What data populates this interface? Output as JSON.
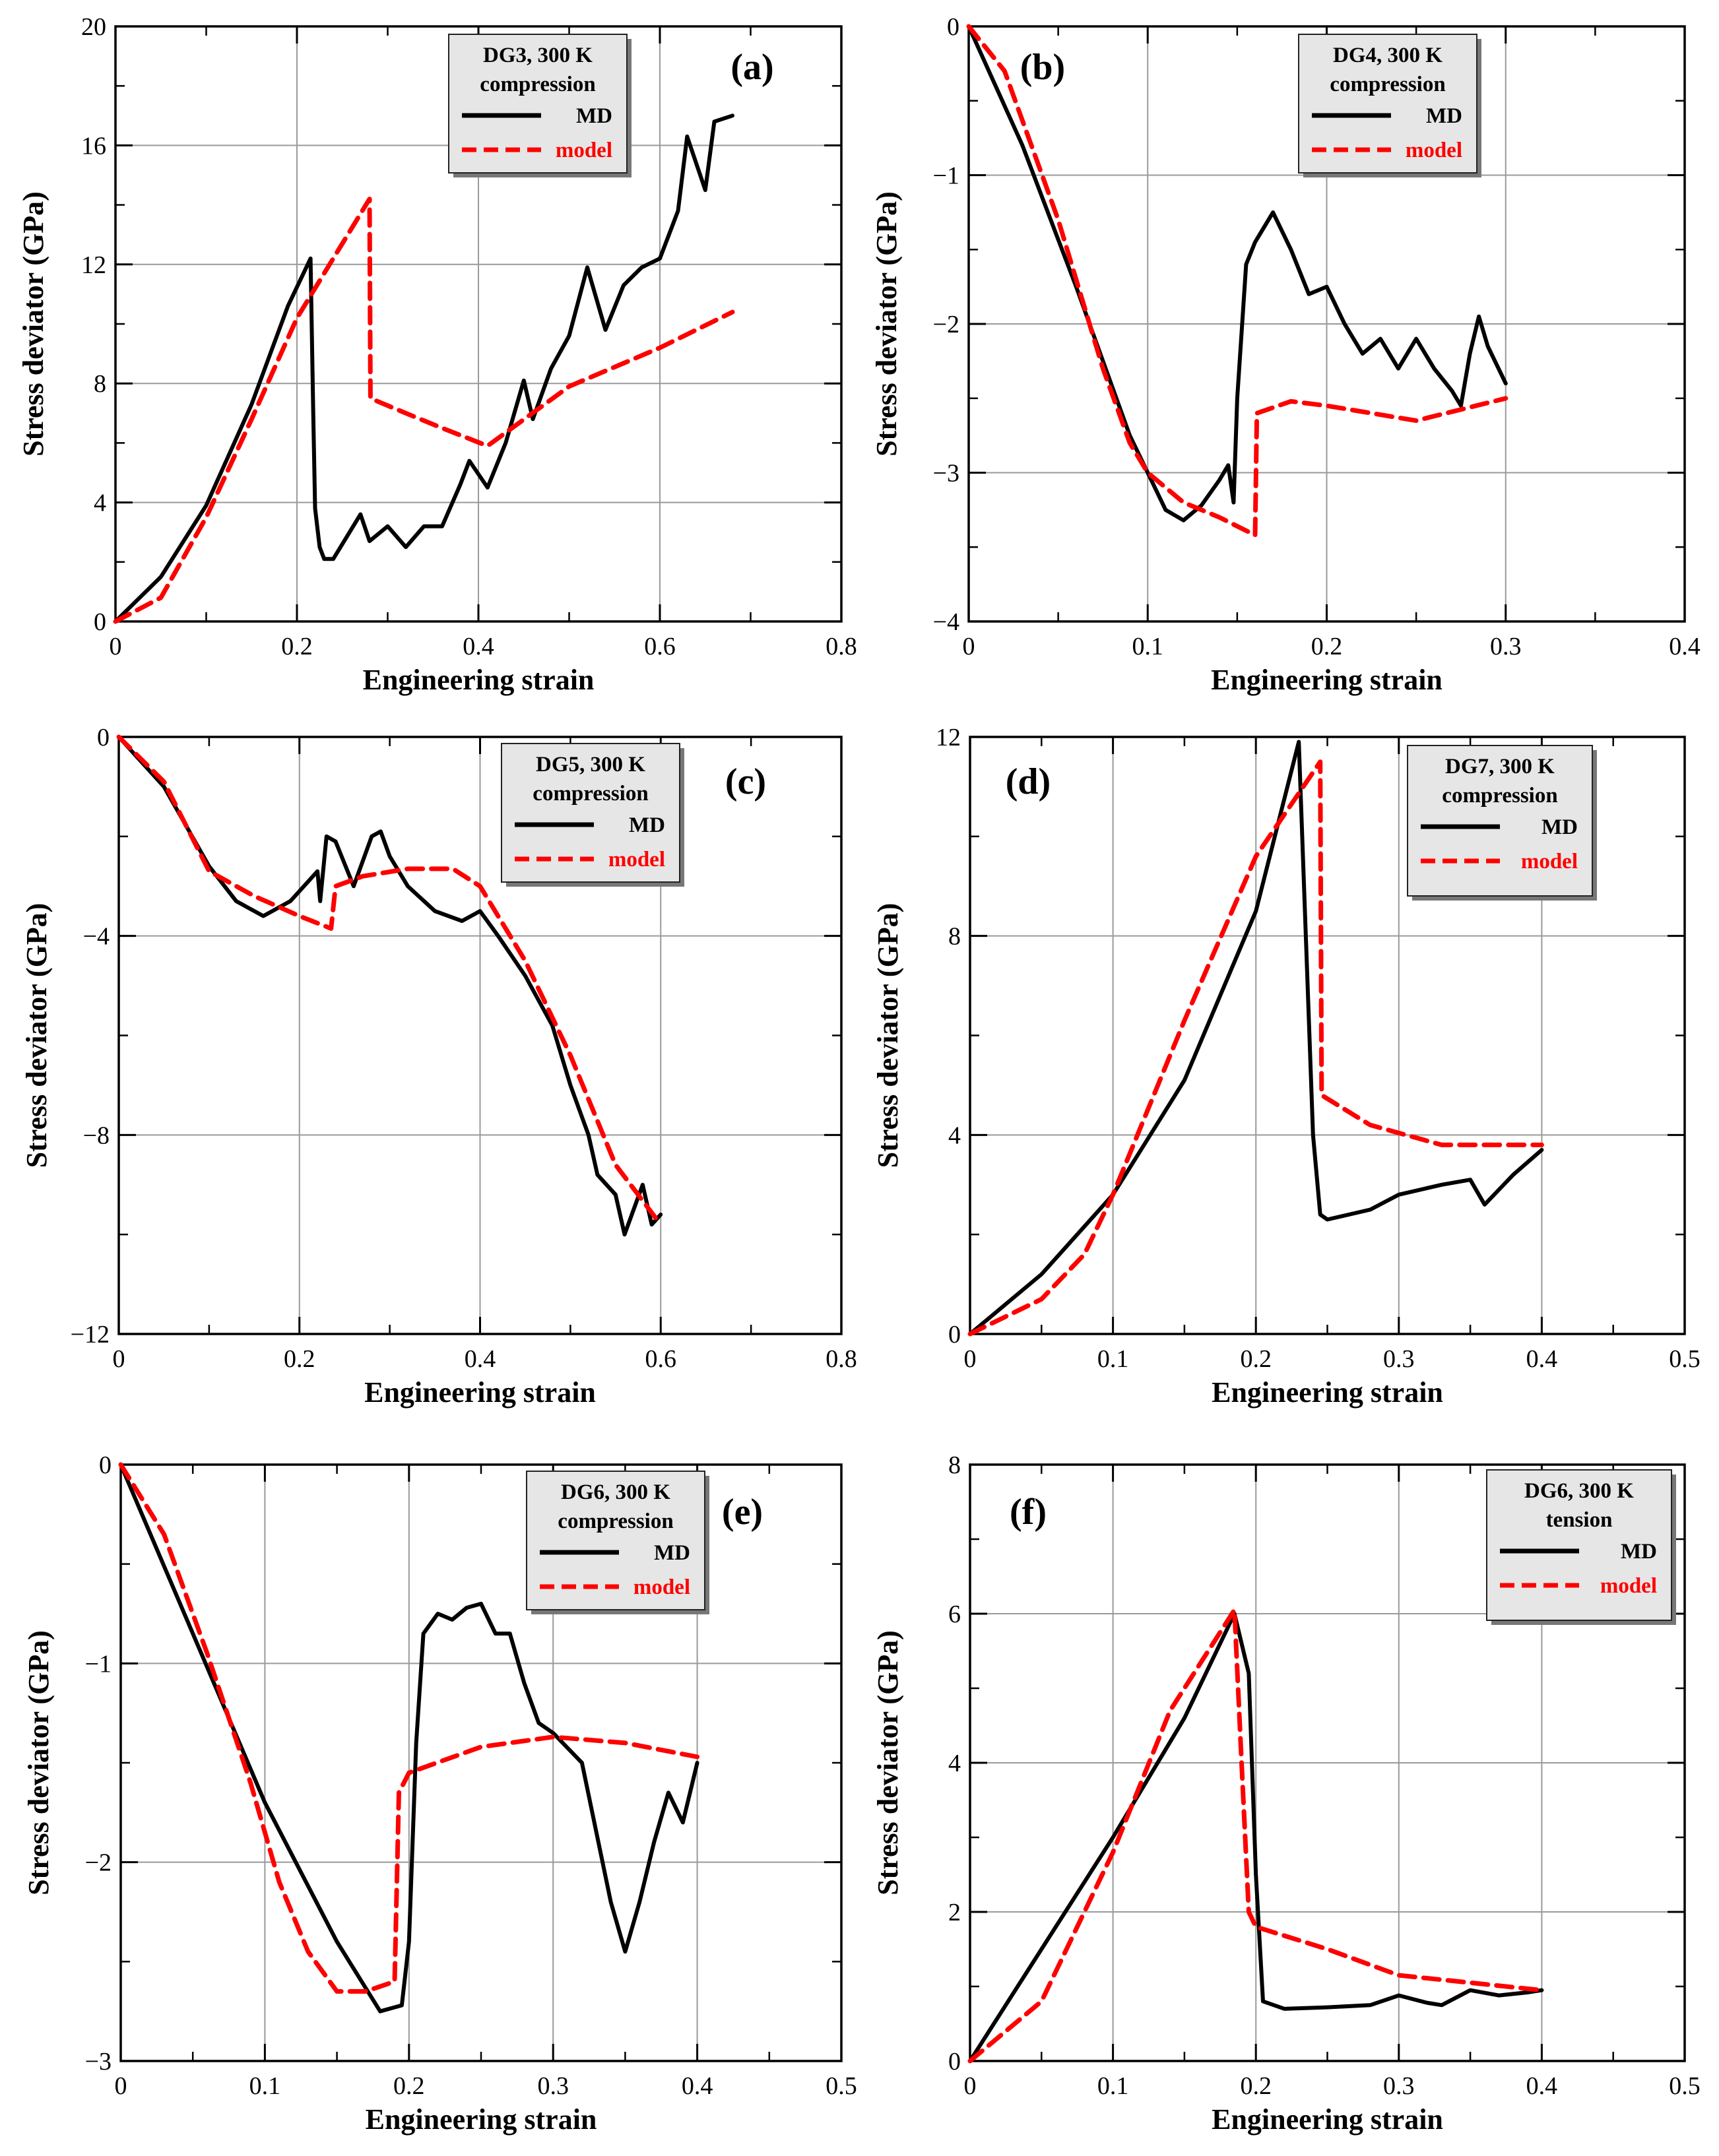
{
  "chart_data": [
    {
      "type": "line",
      "panel_label": "(a)",
      "legend_title": [
        "DG3, 300 K",
        "compression"
      ],
      "xlabel": "Engineering strain",
      "ylabel": "Stress deviator (GPa)",
      "xlim": [
        0,
        0.8
      ],
      "ylim": [
        0,
        20
      ],
      "xticks": [
        0,
        0.2,
        0.4,
        0.6,
        0.8
      ],
      "xtick_labels": [
        "0",
        "0.2",
        "0.4",
        "0.6",
        "0.8"
      ],
      "yticks": [
        0,
        4,
        8,
        12,
        16,
        20
      ],
      "ytick_labels": [
        "0",
        "4",
        "8",
        "12",
        "16",
        "20"
      ],
      "series": [
        {
          "name": "MD",
          "color": "#000000",
          "dash": false,
          "x": [
            0,
            0.05,
            0.1,
            0.15,
            0.19,
            0.215,
            0.218,
            0.22,
            0.225,
            0.23,
            0.24,
            0.27,
            0.28,
            0.3,
            0.32,
            0.34,
            0.36,
            0.38,
            0.39,
            0.41,
            0.43,
            0.45,
            0.46,
            0.48,
            0.5,
            0.52,
            0.54,
            0.56,
            0.58,
            0.6,
            0.62,
            0.63,
            0.65,
            0.66,
            0.68
          ],
          "y": [
            0,
            1.5,
            3.9,
            7.3,
            10.6,
            12.2,
            7.0,
            3.8,
            2.5,
            2.1,
            2.1,
            3.6,
            2.7,
            3.2,
            2.5,
            3.2,
            3.2,
            4.6,
            5.4,
            4.5,
            6.0,
            8.1,
            6.8,
            8.5,
            9.6,
            11.9,
            9.8,
            11.3,
            11.9,
            12.2,
            13.8,
            16.3,
            14.5,
            16.8,
            17.0
          ]
        },
        {
          "name": "model",
          "color": "#ff0000",
          "dash": true,
          "x": [
            0,
            0.05,
            0.1,
            0.15,
            0.2,
            0.28,
            0.281,
            0.32,
            0.36,
            0.41,
            0.5,
            0.6,
            0.68
          ],
          "y": [
            0,
            0.8,
            3.5,
            6.8,
            10.2,
            14.2,
            7.5,
            7.0,
            6.5,
            5.9,
            7.9,
            9.2,
            10.4
          ]
        }
      ]
    },
    {
      "type": "line",
      "panel_label": "(b)",
      "legend_title": [
        "DG4, 300 K",
        "compression"
      ],
      "xlabel": "Engineering strain",
      "ylabel": "Stress deviator (GPa)",
      "xlim": [
        0,
        0.4
      ],
      "ylim": [
        -4,
        0
      ],
      "xticks": [
        0,
        0.1,
        0.2,
        0.3,
        0.4
      ],
      "xtick_labels": [
        "0",
        "0.1",
        "0.2",
        "0.3",
        "0.4"
      ],
      "yticks": [
        -4,
        -3,
        -2,
        -1,
        0
      ],
      "ytick_labels": [
        "−4",
        "−3",
        "−2",
        "−1",
        "0"
      ],
      "series": [
        {
          "name": "MD",
          "color": "#000000",
          "dash": false,
          "x": [
            0,
            0.03,
            0.06,
            0.09,
            0.11,
            0.12,
            0.13,
            0.14,
            0.145,
            0.148,
            0.15,
            0.155,
            0.16,
            0.17,
            0.18,
            0.19,
            0.2,
            0.21,
            0.22,
            0.23,
            0.24,
            0.25,
            0.26,
            0.27,
            0.275,
            0.28,
            0.285,
            0.29,
            0.3
          ],
          "y": [
            0,
            -0.8,
            -1.75,
            -2.75,
            -3.25,
            -3.32,
            -3.22,
            -3.05,
            -2.95,
            -3.2,
            -2.5,
            -1.6,
            -1.45,
            -1.25,
            -1.5,
            -1.8,
            -1.75,
            -2.0,
            -2.2,
            -2.1,
            -2.3,
            -2.1,
            -2.3,
            -2.45,
            -2.55,
            -2.2,
            -1.95,
            -2.15,
            -2.4
          ]
        },
        {
          "name": "model",
          "color": "#ff0000",
          "dash": true,
          "x": [
            0,
            0.02,
            0.05,
            0.075,
            0.09,
            0.1,
            0.12,
            0.14,
            0.16,
            0.161,
            0.18,
            0.2,
            0.25,
            0.3
          ],
          "y": [
            0,
            -0.3,
            -1.3,
            -2.3,
            -2.8,
            -3.0,
            -3.2,
            -3.3,
            -3.42,
            -2.6,
            -2.52,
            -2.55,
            -2.65,
            -2.5
          ]
        }
      ]
    },
    {
      "type": "line",
      "panel_label": "(c)",
      "legend_title": [
        "DG5, 300 K",
        "compression"
      ],
      "xlabel": "Engineering strain",
      "ylabel": "Stress deviator (GPa)",
      "xlim": [
        0,
        0.8
      ],
      "ylim": [
        -12,
        0
      ],
      "xticks": [
        0,
        0.2,
        0.4,
        0.6,
        0.8
      ],
      "xtick_labels": [
        "0",
        "0.2",
        "0.4",
        "0.6",
        "0.8"
      ],
      "yticks": [
        -12,
        -8,
        -4,
        0
      ],
      "ytick_labels": [
        "−12",
        "−8",
        "−4",
        "0"
      ],
      "series": [
        {
          "name": "MD",
          "color": "#000000",
          "dash": false,
          "x": [
            0,
            0.05,
            0.1,
            0.13,
            0.16,
            0.19,
            0.22,
            0.223,
            0.23,
            0.24,
            0.26,
            0.28,
            0.29,
            0.3,
            0.32,
            0.35,
            0.38,
            0.4,
            0.42,
            0.45,
            0.48,
            0.5,
            0.52,
            0.53,
            0.55,
            0.56,
            0.58,
            0.59,
            0.6
          ],
          "y": [
            0,
            -1.0,
            -2.6,
            -3.3,
            -3.6,
            -3.3,
            -2.7,
            -3.3,
            -2.0,
            -2.1,
            -3.0,
            -2.0,
            -1.9,
            -2.4,
            -3.0,
            -3.5,
            -3.7,
            -3.5,
            -4.0,
            -4.8,
            -5.8,
            -7.0,
            -8.0,
            -8.8,
            -9.2,
            -10.0,
            -9.0,
            -9.8,
            -9.6
          ]
        },
        {
          "name": "model",
          "color": "#ff0000",
          "dash": true,
          "x": [
            0,
            0.05,
            0.1,
            0.15,
            0.2,
            0.235,
            0.24,
            0.27,
            0.32,
            0.37,
            0.4,
            0.45,
            0.5,
            0.55,
            0.6
          ],
          "y": [
            0,
            -0.9,
            -2.7,
            -3.2,
            -3.6,
            -3.85,
            -3.0,
            -2.8,
            -2.65,
            -2.65,
            -3.0,
            -4.5,
            -6.4,
            -8.6,
            -9.8
          ]
        }
      ]
    },
    {
      "type": "line",
      "panel_label": "(d)",
      "legend_title": [
        "DG7, 300 K",
        "compression"
      ],
      "xlabel": "Engineering strain",
      "ylabel": "Stress deviator (GPa)",
      "xlim": [
        0,
        0.5
      ],
      "ylim": [
        0,
        12
      ],
      "xticks": [
        0,
        0.1,
        0.2,
        0.3,
        0.4,
        0.5
      ],
      "xtick_labels": [
        "0",
        "0.1",
        "0.2",
        "0.3",
        "0.4",
        "0.5"
      ],
      "yticks": [
        0,
        4,
        8,
        12
      ],
      "ytick_labels": [
        "0",
        "4",
        "8",
        "12"
      ],
      "series": [
        {
          "name": "MD",
          "color": "#000000",
          "dash": false,
          "x": [
            0,
            0.05,
            0.1,
            0.15,
            0.2,
            0.23,
            0.24,
            0.245,
            0.25,
            0.28,
            0.3,
            0.33,
            0.35,
            0.36,
            0.38,
            0.4
          ],
          "y": [
            0,
            1.2,
            2.8,
            5.1,
            8.5,
            11.9,
            4.0,
            2.4,
            2.3,
            2.5,
            2.8,
            3.0,
            3.1,
            2.6,
            3.2,
            3.7
          ]
        },
        {
          "name": "model",
          "color": "#ff0000",
          "dash": true,
          "x": [
            0,
            0.05,
            0.08,
            0.1,
            0.15,
            0.2,
            0.245,
            0.246,
            0.28,
            0.33,
            0.4
          ],
          "y": [
            0,
            0.7,
            1.6,
            2.8,
            6.3,
            9.6,
            11.5,
            4.8,
            4.2,
            3.8,
            3.8
          ]
        }
      ]
    },
    {
      "type": "line",
      "panel_label": "(e)",
      "legend_title": [
        "DG6, 300 K",
        "compression"
      ],
      "xlabel": "Engineering strain",
      "ylabel": "Stress deviator (GPa)",
      "xlim": [
        0,
        0.5
      ],
      "ylim": [
        -3,
        0
      ],
      "xticks": [
        0,
        0.1,
        0.2,
        0.3,
        0.4,
        0.5
      ],
      "xtick_labels": [
        "0",
        "0.1",
        "0.2",
        "0.3",
        "0.4",
        "0.5"
      ],
      "yticks": [
        -3,
        -2,
        -1,
        0
      ],
      "ytick_labels": [
        "−3",
        "−2",
        "−1",
        "0"
      ],
      "series": [
        {
          "name": "MD",
          "color": "#000000",
          "dash": false,
          "x": [
            0,
            0.05,
            0.1,
            0.15,
            0.18,
            0.195,
            0.2,
            0.205,
            0.21,
            0.22,
            0.23,
            0.24,
            0.25,
            0.26,
            0.27,
            0.28,
            0.29,
            0.3,
            0.32,
            0.34,
            0.35,
            0.36,
            0.37,
            0.38,
            0.39,
            0.4
          ],
          "y": [
            0,
            -0.85,
            -1.7,
            -2.4,
            -2.75,
            -2.72,
            -2.4,
            -1.4,
            -0.85,
            -0.75,
            -0.78,
            -0.72,
            -0.7,
            -0.85,
            -0.85,
            -1.1,
            -1.3,
            -1.35,
            -1.5,
            -2.2,
            -2.45,
            -2.2,
            -1.9,
            -1.65,
            -1.8,
            -1.5
          ]
        },
        {
          "name": "model",
          "color": "#ff0000",
          "dash": true,
          "x": [
            0,
            0.03,
            0.06,
            0.09,
            0.11,
            0.13,
            0.15,
            0.17,
            0.19,
            0.193,
            0.2,
            0.25,
            0.3,
            0.35,
            0.4
          ],
          "y": [
            0,
            -0.35,
            -0.95,
            -1.6,
            -2.1,
            -2.45,
            -2.65,
            -2.65,
            -2.6,
            -1.65,
            -1.55,
            -1.42,
            -1.37,
            -1.4,
            -1.47
          ]
        }
      ]
    },
    {
      "type": "line",
      "panel_label": "(f)",
      "legend_title": [
        "DG6, 300 K",
        "tension"
      ],
      "xlabel": "Engineering strain",
      "ylabel": "Stress deviator (GPa)",
      "xlim": [
        0,
        0.5
      ],
      "ylim": [
        0,
        8
      ],
      "xticks": [
        0,
        0.1,
        0.2,
        0.3,
        0.4,
        0.5
      ],
      "xtick_labels": [
        "0",
        "0.1",
        "0.2",
        "0.3",
        "0.4",
        "0.5"
      ],
      "yticks": [
        0,
        2,
        4,
        6,
        8
      ],
      "ytick_labels": [
        "0",
        "2",
        "4",
        "6",
        "8"
      ],
      "series": [
        {
          "name": "MD",
          "color": "#000000",
          "dash": false,
          "x": [
            0,
            0.05,
            0.1,
            0.15,
            0.185,
            0.195,
            0.2,
            0.205,
            0.22,
            0.25,
            0.28,
            0.3,
            0.32,
            0.33,
            0.35,
            0.37,
            0.39,
            0.4
          ],
          "y": [
            0,
            1.5,
            3.0,
            4.6,
            6.0,
            5.2,
            2.5,
            0.8,
            0.7,
            0.72,
            0.75,
            0.88,
            0.78,
            0.75,
            0.95,
            0.88,
            0.92,
            0.95
          ]
        },
        {
          "name": "model",
          "color": "#ff0000",
          "dash": true,
          "x": [
            0,
            0.05,
            0.1,
            0.14,
            0.185,
            0.19,
            0.195,
            0.2,
            0.25,
            0.3,
            0.35,
            0.4
          ],
          "y": [
            0,
            0.8,
            2.8,
            4.7,
            6.05,
            4.0,
            2.0,
            1.8,
            1.5,
            1.15,
            1.05,
            0.95
          ]
        }
      ]
    }
  ]
}
